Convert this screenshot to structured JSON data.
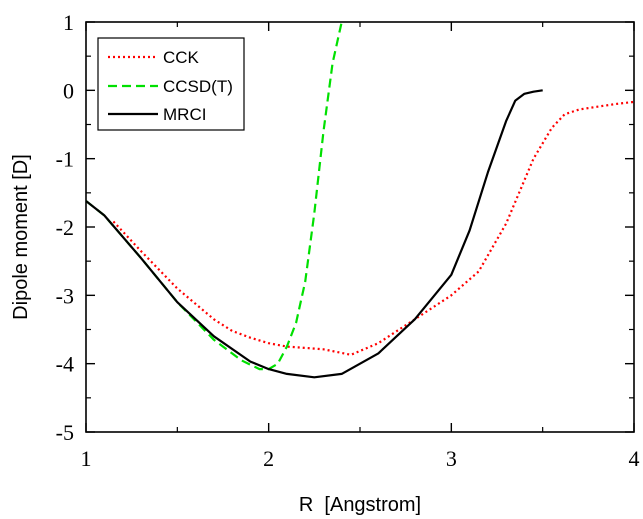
{
  "chart_data": {
    "type": "line",
    "title": "",
    "xlabel": "R  [Angstrom]",
    "ylabel": "Dipole moment [D]",
    "xlim": [
      1,
      4
    ],
    "ylim": [
      -5,
      1
    ],
    "xticks": [
      1,
      2,
      3,
      4
    ],
    "yticks": [
      1,
      0,
      -1,
      -2,
      -3,
      -4,
      -5
    ],
    "grid": false,
    "legend_placement": "top-left",
    "series": [
      {
        "name": "CCK",
        "color": "#ff0000",
        "dash": "dotted",
        "x": [
          1.15,
          1.3,
          1.5,
          1.7,
          1.8,
          1.9,
          2.0,
          2.1,
          2.2,
          2.3,
          2.45,
          2.6,
          2.8,
          3.0,
          3.15,
          3.3,
          3.45,
          3.55,
          3.62,
          3.7,
          3.8,
          3.9,
          4.0
        ],
        "y": [
          -1.92,
          -2.35,
          -2.9,
          -3.35,
          -3.52,
          -3.62,
          -3.7,
          -3.75,
          -3.77,
          -3.79,
          -3.87,
          -3.7,
          -3.35,
          -3.0,
          -2.65,
          -1.95,
          -1.0,
          -0.55,
          -0.35,
          -0.28,
          -0.24,
          -0.2,
          -0.17
        ]
      },
      {
        "name": "CCSD(T)",
        "color": "#00e000",
        "dash": "dashed",
        "x": [
          1.0,
          1.1,
          1.3,
          1.5,
          1.7,
          1.85,
          1.95,
          2.0,
          2.05,
          2.1,
          2.15,
          2.2,
          2.25,
          2.3,
          2.35,
          2.4
        ],
        "y": [
          -1.62,
          -1.83,
          -2.45,
          -3.1,
          -3.65,
          -3.95,
          -4.08,
          -4.08,
          -4.0,
          -3.75,
          -3.4,
          -2.8,
          -1.8,
          -0.6,
          0.4,
          1.0
        ]
      },
      {
        "name": "MRCI",
        "color": "#000000",
        "dash": "solid",
        "x": [
          1.0,
          1.1,
          1.3,
          1.5,
          1.7,
          1.9,
          2.0,
          2.1,
          2.25,
          2.4,
          2.6,
          2.8,
          3.0,
          3.1,
          3.2,
          3.3,
          3.35,
          3.4,
          3.45,
          3.5
        ],
        "y": [
          -1.62,
          -1.83,
          -2.45,
          -3.1,
          -3.6,
          -3.97,
          -4.08,
          -4.15,
          -4.2,
          -4.15,
          -3.85,
          -3.35,
          -2.7,
          -2.05,
          -1.2,
          -0.45,
          -0.15,
          -0.05,
          -0.02,
          0.0
        ]
      }
    ]
  }
}
